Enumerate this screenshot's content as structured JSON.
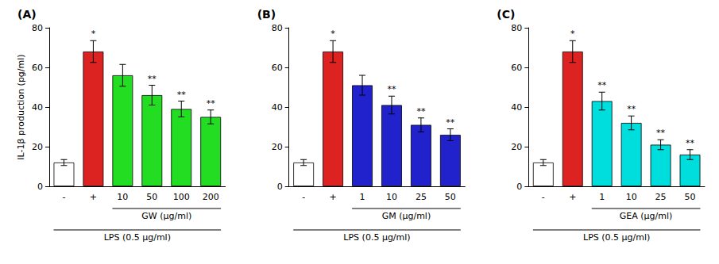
{
  "chart_data": [
    {
      "type": "bar",
      "title": "(A)",
      "categories": [
        "-",
        "+",
        "10",
        "50",
        "100",
        "200"
      ],
      "values": [
        12,
        68,
        56,
        46,
        39,
        35
      ],
      "errors": [
        1.5,
        5.5,
        5.5,
        5.0,
        4.0,
        3.5
      ],
      "colors": [
        "#ffffff",
        "#dd2222",
        "#22dd22",
        "#22dd22",
        "#22dd22",
        "#22dd22"
      ],
      "annotations": [
        null,
        "*",
        null,
        "**",
        "**",
        "**"
      ],
      "treatment_label": "GW (μg/ml)",
      "lps_label": "LPS (0.5 μg/ml)",
      "ylabel": "IL-1β production (pg/ml)",
      "ylim": [
        0,
        80
      ],
      "yticks": [
        0,
        20,
        40,
        60,
        80
      ],
      "grid": false
    },
    {
      "type": "bar",
      "title": "(B)",
      "categories": [
        "-",
        "+",
        "1",
        "10",
        "25",
        "50"
      ],
      "values": [
        12,
        68,
        51,
        41,
        31,
        26
      ],
      "errors": [
        1.5,
        5.5,
        5.0,
        4.5,
        3.5,
        3.0
      ],
      "colors": [
        "#ffffff",
        "#dd2222",
        "#2222cc",
        "#2222cc",
        "#2222cc",
        "#2222cc"
      ],
      "annotations": [
        null,
        "*",
        null,
        "**",
        "**",
        "**"
      ],
      "treatment_label": "GM (μg/ml)",
      "lps_label": "LPS (0.5 μg/ml)",
      "ylim": [
        0,
        80
      ],
      "yticks": [
        0,
        20,
        40,
        60,
        80
      ],
      "grid": false
    },
    {
      "type": "bar",
      "title": "(C)",
      "categories": [
        "-",
        "+",
        "1",
        "10",
        "25",
        "50"
      ],
      "values": [
        12,
        68,
        43,
        32,
        21,
        16
      ],
      "errors": [
        1.5,
        5.5,
        4.5,
        3.5,
        2.5,
        2.5
      ],
      "colors": [
        "#ffffff",
        "#dd2222",
        "#00dddd",
        "#00dddd",
        "#00dddd",
        "#00dddd"
      ],
      "annotations": [
        null,
        "*",
        "**",
        "**",
        "**",
        "**"
      ],
      "treatment_label": "GEA (μg/ml)",
      "lps_label": "LPS (0.5 μg/ml)",
      "ylim": [
        0,
        80
      ],
      "yticks": [
        0,
        20,
        40,
        60,
        80
      ],
      "grid": false
    }
  ]
}
